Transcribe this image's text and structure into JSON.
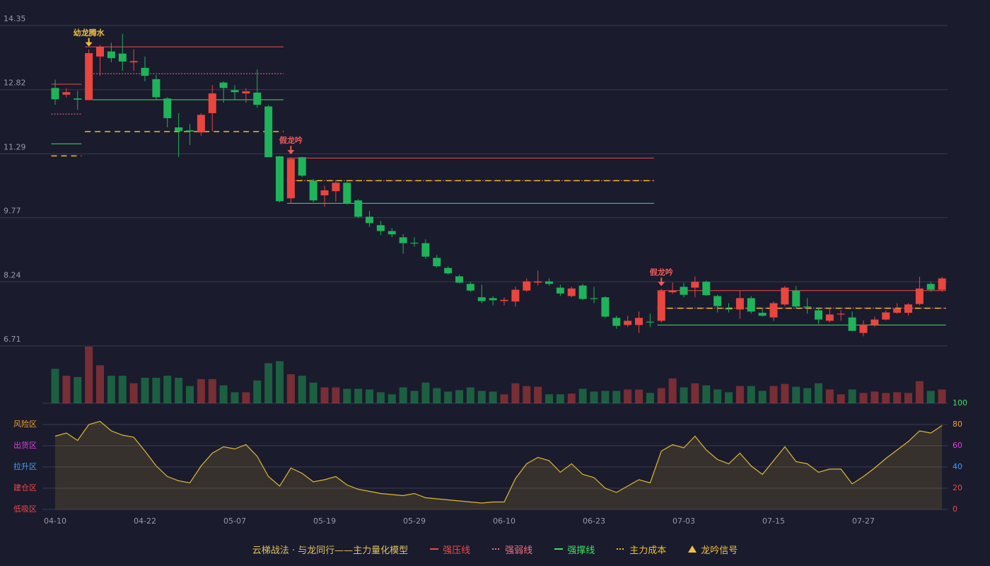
{
  "chart_data": {
    "type": "candlestick",
    "legend_title": "云梯战法 · 与龙同行——主力量化模型",
    "categories": [
      "04-10",
      null,
      null,
      null,
      null,
      null,
      null,
      null,
      "04-22",
      null,
      null,
      null,
      null,
      null,
      null,
      null,
      "05-07",
      null,
      null,
      null,
      null,
      null,
      null,
      null,
      "05-19",
      null,
      null,
      null,
      null,
      null,
      null,
      null,
      "05-29",
      null,
      null,
      null,
      null,
      null,
      null,
      null,
      "06-10",
      null,
      null,
      null,
      null,
      null,
      null,
      null,
      "06-23",
      null,
      null,
      null,
      null,
      null,
      null,
      null,
      "07-03",
      null,
      null,
      null,
      null,
      null,
      null,
      null,
      "07-15",
      null,
      null,
      null,
      null,
      null,
      null,
      null,
      "07-27",
      null,
      null,
      null,
      null,
      null,
      null,
      null
    ],
    "open": [
      12.86,
      12.7,
      12.61,
      12.57,
      13.61,
      13.73,
      13.68,
      13.47,
      13.34,
      13.07,
      12.61,
      11.92,
      11.85,
      11.8,
      12.26,
      12.99,
      12.81,
      12.73,
      12.75,
      12.42,
      11.23,
      10.23,
      11.21,
      10.65,
      10.3,
      10.4,
      10.6,
      10.18,
      9.79,
      9.59,
      9.45,
      9.3,
      9.17,
      9.16,
      8.81,
      8.57,
      8.37,
      8.19,
      7.87,
      7.85,
      7.78,
      7.77,
      8.03,
      8.22,
      8.25,
      8.1,
      7.9,
      8.15,
      7.85,
      7.87,
      7.38,
      7.21,
      7.21,
      7.29,
      7.31,
      7.99,
      8.12,
      8.1,
      8.24,
      7.9,
      7.6,
      7.58,
      7.85,
      7.5,
      7.39,
      7.7,
      8.03,
      7.65,
      7.56,
      7.31,
      7.46,
      7.39,
      7.02,
      7.21,
      7.34,
      7.5,
      7.5,
      7.71,
      8.19,
      8.05
    ],
    "close": [
      12.59,
      12.76,
      12.58,
      13.69,
      13.84,
      13.57,
      13.49,
      13.5,
      13.15,
      12.64,
      12.14,
      11.83,
      11.82,
      12.22,
      12.73,
      12.86,
      12.76,
      12.78,
      12.46,
      11.21,
      10.16,
      11.17,
      10.77,
      10.18,
      10.42,
      10.6,
      10.11,
      9.79,
      9.64,
      9.45,
      9.37,
      9.16,
      9.15,
      8.84,
      8.61,
      8.44,
      8.22,
      8.03,
      7.78,
      7.8,
      7.81,
      8.05,
      8.25,
      8.25,
      8.19,
      7.96,
      8.08,
      7.83,
      7.83,
      7.41,
      7.19,
      7.31,
      7.38,
      7.27,
      8.02,
      8.03,
      7.93,
      8.24,
      7.92,
      7.66,
      7.58,
      7.85,
      7.53,
      7.43,
      7.73,
      8.1,
      7.65,
      7.63,
      7.34,
      7.46,
      7.48,
      7.07,
      7.22,
      7.34,
      7.51,
      7.6,
      7.7,
      8.08,
      8.05,
      8.32
    ],
    "high": [
      13.06,
      12.85,
      12.79,
      13.78,
      13.88,
      13.94,
      14.15,
      13.78,
      13.61,
      13.17,
      12.64,
      12.26,
      12.0,
      12.26,
      12.93,
      13.02,
      12.93,
      12.85,
      13.3,
      12.46,
      11.24,
      11.21,
      11.22,
      10.69,
      10.53,
      10.63,
      10.63,
      10.21,
      9.93,
      9.69,
      9.52,
      9.38,
      9.3,
      9.25,
      8.88,
      8.61,
      8.41,
      8.24,
      8.17,
      7.9,
      7.87,
      8.12,
      8.32,
      8.51,
      8.32,
      8.17,
      8.12,
      8.19,
      8.12,
      7.9,
      7.43,
      7.43,
      7.53,
      7.48,
      8.07,
      8.22,
      8.22,
      8.37,
      8.27,
      7.93,
      7.73,
      8.02,
      7.9,
      7.6,
      7.77,
      8.14,
      8.14,
      7.85,
      7.63,
      7.63,
      7.56,
      7.53,
      7.32,
      7.41,
      7.56,
      7.73,
      7.73,
      8.36,
      8.24,
      8.36
    ],
    "low": [
      12.46,
      12.63,
      12.34,
      12.57,
      13.15,
      13.47,
      13.27,
      13.27,
      13.02,
      12.59,
      11.92,
      11.21,
      11.5,
      11.72,
      11.83,
      12.51,
      12.59,
      12.51,
      12.39,
      11.21,
      10.13,
      10.11,
      10.74,
      10.14,
      10.03,
      10.15,
      10.08,
      9.76,
      9.55,
      9.35,
      9.3,
      8.91,
      9.08,
      8.79,
      8.57,
      8.41,
      8.2,
      8.0,
      7.73,
      7.68,
      7.68,
      7.65,
      8.0,
      8.15,
      8.15,
      7.9,
      7.87,
      7.8,
      7.73,
      7.38,
      7.12,
      7.16,
      7.02,
      7.16,
      7.27,
      7.95,
      7.87,
      7.87,
      7.9,
      7.51,
      7.51,
      7.36,
      7.48,
      7.41,
      7.31,
      7.66,
      7.6,
      7.48,
      7.24,
      7.27,
      7.31,
      7.07,
      6.94,
      7.16,
      7.32,
      7.48,
      7.43,
      7.68,
      8.0,
      8.0
    ],
    "volume": [
      50,
      40,
      38,
      82,
      55,
      40,
      40,
      29,
      37,
      37,
      40,
      37,
      25,
      35,
      35,
      26,
      16,
      16,
      33,
      58,
      61,
      42,
      40,
      30,
      23,
      23,
      21,
      21,
      20,
      16,
      13,
      23,
      18,
      30,
      22,
      17,
      19,
      23,
      18,
      17,
      13,
      29,
      25,
      24,
      13,
      13,
      14,
      21,
      17,
      18,
      18,
      20,
      20,
      15,
      22,
      36,
      23,
      29,
      26,
      20,
      16,
      25,
      25,
      18,
      25,
      28,
      24,
      22,
      29,
      20,
      13,
      20,
      15,
      17,
      15,
      16,
      15,
      32,
      18,
      20
    ],
    "up_color": "#e8463f",
    "down_color": "#1fb35a",
    "ylim": [
      6.71,
      14.35
    ],
    "yticks": [
      14.35,
      12.82,
      11.29,
      9.77,
      8.24,
      6.71
    ],
    "grid": true,
    "levels": [
      {
        "from": 0,
        "to": 2,
        "values": [
          12.95,
          12.24,
          11.53,
          11.24
        ]
      },
      {
        "from": 3,
        "to": 20,
        "values": [
          13.84,
          13.2,
          12.58,
          11.82
        ]
      },
      {
        "from": 21,
        "to": 53,
        "values": [
          11.19,
          10.65,
          10.11,
          10.65
        ]
      },
      {
        "from": 54,
        "to": 79,
        "values": [
          8.03,
          7.61,
          7.21,
          7.61
        ]
      }
    ],
    "signals": [
      {
        "index": 3,
        "label": "幼龙腾水",
        "color": "#f0c040"
      },
      {
        "index": 21,
        "label": "假龙吟",
        "color": "#f05a5a"
      },
      {
        "index": 54,
        "label": "假龙吟",
        "color": "#f05a5a"
      }
    ],
    "legend": [
      {
        "label": "强压线",
        "color": "#f04848",
        "style": "solid"
      },
      {
        "label": "强弱线",
        "color": "#f07080",
        "style": "dotted"
      },
      {
        "label": "强撑线",
        "color": "#40e060",
        "style": "solid"
      },
      {
        "label": "主力成本",
        "color": "#f0c020",
        "style": "dashed"
      },
      {
        "label": "龙吟信号",
        "color": "#f0c040",
        "style": "triangle"
      }
    ],
    "indicator": {
      "values": [
        69,
        72,
        65,
        80,
        83,
        74,
        70,
        68,
        55,
        41,
        31,
        27,
        25,
        41,
        53,
        59,
        57,
        61,
        50,
        31,
        22,
        39,
        34,
        26,
        28,
        31,
        23,
        19,
        17,
        15,
        14,
        13,
        15,
        11,
        10,
        9,
        8,
        7,
        6,
        7,
        7,
        29,
        43,
        49,
        46,
        35,
        43,
        33,
        30,
        20,
        16,
        22,
        28,
        25,
        55,
        61,
        58,
        69,
        56,
        47,
        43,
        53,
        41,
        33,
        46,
        59,
        45,
        43,
        35,
        38,
        38,
        24,
        31,
        39,
        48,
        56,
        64,
        74,
        72,
        79
      ],
      "color": "#e0b830",
      "ylim": [
        0,
        100
      ],
      "yticks": [
        0,
        20,
        40,
        60,
        80,
        100
      ],
      "tick_colors": [
        "#f04848",
        "#f04848",
        "#4a9ff5",
        "#e040e0",
        "#f0a030",
        "#40e060"
      ],
      "zones": [
        {
          "label": "低吸区",
          "value": 0,
          "color": "#f04848"
        },
        {
          "label": "建仓区",
          "value": 20,
          "color": "#f04848"
        },
        {
          "label": "拉升区",
          "value": 40,
          "color": "#4a9ff5"
        },
        {
          "label": "出货区",
          "value": 60,
          "color": "#e040e0"
        },
        {
          "label": "风险区",
          "value": 80,
          "color": "#f0a030"
        }
      ]
    }
  }
}
